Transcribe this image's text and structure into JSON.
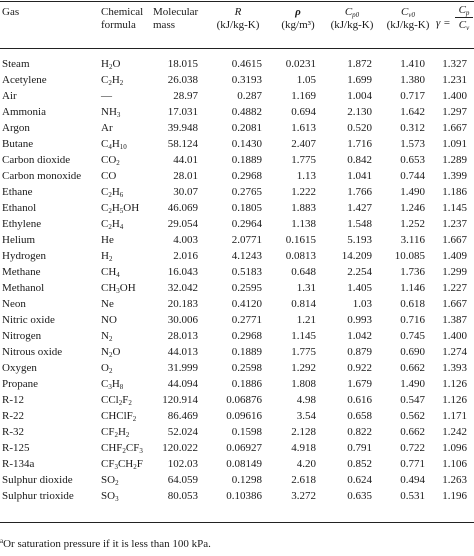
{
  "headers": {
    "gas": "Gas",
    "chemical_formula_1": "Chemical",
    "chemical_formula_2": "formula",
    "molecular_mass_1": "Molecular",
    "molecular_mass_2": "mass",
    "R_symbol": "R",
    "R_unit": "(kJ/kg-K)",
    "rho_symbol": "ρ",
    "rho_unit": "(kg/m³)",
    "cp0_symbol": "C",
    "cp0_sub": "p0",
    "cp0_unit": "(kJ/kg-K)",
    "cv0_symbol": "C",
    "cv0_sub": "v0",
    "cv0_unit": "(kJ/kg-K)",
    "gamma_symbol": "γ =",
    "gamma_num": "C",
    "gamma_num_sub": "p",
    "gamma_den": "C",
    "gamma_den_sub": "v"
  },
  "rows": [
    {
      "gas": "Steam",
      "f": [
        [
          "H",
          ""
        ],
        [
          "2",
          "s"
        ],
        [
          "O",
          ""
        ]
      ],
      "mm": "18.015",
      "R": "0.4615",
      "rho": "0.0231",
      "cp": "1.872",
      "cv": "1.410",
      "g": "1.327"
    },
    {
      "gas": "Acetylene",
      "f": [
        [
          "C",
          ""
        ],
        [
          "2",
          "s"
        ],
        [
          "H",
          ""
        ],
        [
          "2",
          "s"
        ]
      ],
      "mm": "26.038",
      "R": "0.3193",
      "rho": "1.05",
      "cp": "1.699",
      "cv": "1.380",
      "g": "1.231"
    },
    {
      "gas": "Air",
      "f": [
        [
          "—",
          ""
        ]
      ],
      "mm": "28.97",
      "R": "0.287",
      "rho": "1.169",
      "cp": "1.004",
      "cv": "0.717",
      "g": "1.400"
    },
    {
      "gas": "Ammonia",
      "f": [
        [
          "NH",
          ""
        ],
        [
          "3",
          "s"
        ]
      ],
      "mm": "17.031",
      "R": "0.4882",
      "rho": "0.694",
      "cp": "2.130",
      "cv": "1.642",
      "g": "1.297"
    },
    {
      "gas": "Argon",
      "f": [
        [
          "Ar",
          ""
        ]
      ],
      "mm": "39.948",
      "R": "0.2081",
      "rho": "1.613",
      "cp": "0.520",
      "cv": "0.312",
      "g": "1.667"
    },
    {
      "gas": "Butane",
      "f": [
        [
          "C",
          ""
        ],
        [
          "4",
          "s"
        ],
        [
          "H",
          ""
        ],
        [
          "10",
          "s"
        ]
      ],
      "mm": "58.124",
      "R": "0.1430",
      "rho": "2.407",
      "cp": "1.716",
      "cv": "1.573",
      "g": "1.091"
    },
    {
      "gas": "Carbon dioxide",
      "f": [
        [
          "CO",
          ""
        ],
        [
          "2",
          "s"
        ]
      ],
      "mm": "44.01",
      "R": "0.1889",
      "rho": "1.775",
      "cp": "0.842",
      "cv": "0.653",
      "g": "1.289"
    },
    {
      "gas": "Carbon monoxide",
      "f": [
        [
          "CO",
          ""
        ]
      ],
      "mm": "28.01",
      "R": "0.2968",
      "rho": "1.13",
      "cp": "1.041",
      "cv": "0.744",
      "g": "1.399"
    },
    {
      "gas": "Ethane",
      "f": [
        [
          "C",
          ""
        ],
        [
          "2",
          "s"
        ],
        [
          "H",
          ""
        ],
        [
          "6",
          "s"
        ]
      ],
      "mm": "30.07",
      "R": "0.2765",
      "rho": "1.222",
      "cp": "1.766",
      "cv": "1.490",
      "g": "1.186"
    },
    {
      "gas": "Ethanol",
      "f": [
        [
          "C",
          ""
        ],
        [
          "2",
          "s"
        ],
        [
          "H",
          ""
        ],
        [
          "5",
          "s"
        ],
        [
          "OH",
          ""
        ]
      ],
      "mm": "46.069",
      "R": "0.1805",
      "rho": "1.883",
      "cp": "1.427",
      "cv": "1.246",
      "g": "1.145"
    },
    {
      "gas": "Ethylene",
      "f": [
        [
          "C",
          ""
        ],
        [
          "2",
          "s"
        ],
        [
          "H",
          ""
        ],
        [
          "4",
          "s"
        ]
      ],
      "mm": "29.054",
      "R": "0.2964",
      "rho": "1.138",
      "cp": "1.548",
      "cv": "1.252",
      "g": "1.237"
    },
    {
      "gas": "Helium",
      "f": [
        [
          "He",
          ""
        ]
      ],
      "mm": "4.003",
      "R": "2.0771",
      "rho": "0.1615",
      "cp": "5.193",
      "cv": "3.116",
      "g": "1.667"
    },
    {
      "gas": "Hydrogen",
      "f": [
        [
          "H",
          ""
        ],
        [
          "2",
          "s"
        ]
      ],
      "mm": "2.016",
      "R": "4.1243",
      "rho": "0.0813",
      "cp": "14.209",
      "cv": "10.085",
      "g": "1.409"
    },
    {
      "gas": "Methane",
      "f": [
        [
          "CH",
          ""
        ],
        [
          "4",
          "s"
        ]
      ],
      "mm": "16.043",
      "R": "0.5183",
      "rho": "0.648",
      "cp": "2.254",
      "cv": "1.736",
      "g": "1.299"
    },
    {
      "gas": "Methanol",
      "f": [
        [
          "CH",
          ""
        ],
        [
          "3",
          "s"
        ],
        [
          "OH",
          ""
        ]
      ],
      "mm": "32.042",
      "R": "0.2595",
      "rho": "1.31",
      "cp": "1.405",
      "cv": "1.146",
      "g": "1.227"
    },
    {
      "gas": "Neon",
      "f": [
        [
          "Ne",
          ""
        ]
      ],
      "mm": "20.183",
      "R": "0.4120",
      "rho": "0.814",
      "cp": "1.03",
      "cv": "0.618",
      "g": "1.667"
    },
    {
      "gas": "Nitric oxide",
      "f": [
        [
          "NO",
          ""
        ]
      ],
      "mm": "30.006",
      "R": "0.2771",
      "rho": "1.21",
      "cp": "0.993",
      "cv": "0.716",
      "g": "1.387"
    },
    {
      "gas": "Nitrogen",
      "f": [
        [
          "N",
          ""
        ],
        [
          "2",
          "s"
        ]
      ],
      "mm": "28.013",
      "R": "0.2968",
      "rho": "1.145",
      "cp": "1.042",
      "cv": "0.745",
      "g": "1.400"
    },
    {
      "gas": "Nitrous oxide",
      "f": [
        [
          "N",
          ""
        ],
        [
          "2",
          "s"
        ],
        [
          "O",
          ""
        ]
      ],
      "mm": "44.013",
      "R": "0.1889",
      "rho": "1.775",
      "cp": "0.879",
      "cv": "0.690",
      "g": "1.274"
    },
    {
      "gas": "Oxygen",
      "f": [
        [
          "O",
          ""
        ],
        [
          "2",
          "s"
        ]
      ],
      "mm": "31.999",
      "R": "0.2598",
      "rho": "1.292",
      "cp": "0.922",
      "cv": "0.662",
      "g": "1.393"
    },
    {
      "gas": "Propane",
      "f": [
        [
          "C",
          ""
        ],
        [
          "3",
          "s"
        ],
        [
          "H",
          ""
        ],
        [
          "8",
          "s"
        ]
      ],
      "mm": "44.094",
      "R": "0.1886",
      "rho": "1.808",
      "cp": "1.679",
      "cv": "1.490",
      "g": "1.126"
    },
    {
      "gas": "R-12",
      "f": [
        [
          "CCl",
          ""
        ],
        [
          "2",
          "s"
        ],
        [
          "F",
          ""
        ],
        [
          "2",
          "s"
        ]
      ],
      "mm": "120.914",
      "R": "0.06876",
      "rho": "4.98",
      "cp": "0.616",
      "cv": "0.547",
      "g": "1.126"
    },
    {
      "gas": "R-22",
      "f": [
        [
          "CHClF",
          ""
        ],
        [
          "2",
          "s"
        ]
      ],
      "mm": "86.469",
      "R": "0.09616",
      "rho": "3.54",
      "cp": "0.658",
      "cv": "0.562",
      "g": "1.171"
    },
    {
      "gas": "R-32",
      "f": [
        [
          "CF",
          ""
        ],
        [
          "2",
          "s"
        ],
        [
          "H",
          ""
        ],
        [
          "2",
          "s"
        ]
      ],
      "mm": "52.024",
      "R": "0.1598",
      "rho": "2.128",
      "cp": "0.822",
      "cv": "0.662",
      "g": "1.242"
    },
    {
      "gas": "R-125",
      "f": [
        [
          "CHF",
          ""
        ],
        [
          "2",
          "s"
        ],
        [
          "CF",
          ""
        ],
        [
          "3",
          "s"
        ]
      ],
      "mm": "120.022",
      "R": "0.06927",
      "rho": "4.918",
      "cp": "0.791",
      "cv": "0.722",
      "g": "1.096"
    },
    {
      "gas": "R-134a",
      "f": [
        [
          "CF",
          ""
        ],
        [
          "3",
          "s"
        ],
        [
          "CH",
          ""
        ],
        [
          "2",
          "s"
        ],
        [
          "F",
          ""
        ]
      ],
      "mm": "102.03",
      "R": "0.08149",
      "rho": "4.20",
      "cp": "0.852",
      "cv": "0.771",
      "g": "1.106"
    },
    {
      "gas": "Sulphur dioxide",
      "f": [
        [
          "SO",
          ""
        ],
        [
          "2",
          "s"
        ]
      ],
      "mm": "64.059",
      "R": "0.1298",
      "rho": "2.618",
      "cp": "0.624",
      "cv": "0.494",
      "g": "1.263"
    },
    {
      "gas": "Sulphur trioxide",
      "f": [
        [
          "SO",
          ""
        ],
        [
          "3",
          "s"
        ]
      ],
      "mm": "80.053",
      "R": "0.10386",
      "rho": "3.272",
      "cp": "0.635",
      "cv": "0.531",
      "g": "1.196"
    }
  ],
  "footnote": {
    "marker": "a",
    "text": "Or saturation pressure if it is less than 100 kPa."
  }
}
